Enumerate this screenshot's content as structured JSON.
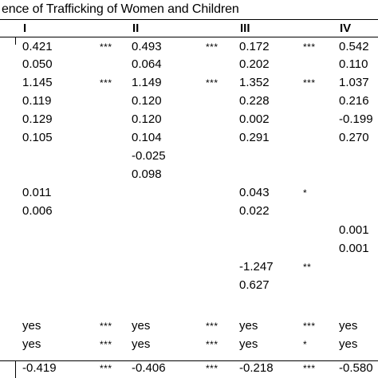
{
  "title": "ence of Trafficking of Women and Children",
  "columns": [
    "I",
    "II",
    "III",
    "IV"
  ],
  "rows": [
    [
      "0.421",
      "***",
      "0.493",
      "***",
      "0.172",
      "***",
      "0.542"
    ],
    [
      "0.050",
      "",
      "0.064",
      "",
      "0.202",
      "",
      "0.110"
    ],
    [
      "1.145",
      "***",
      "1.149",
      "***",
      "1.352",
      "***",
      "1.037"
    ],
    [
      "0.119",
      "",
      "0.120",
      "",
      "0.228",
      "",
      "0.216"
    ],
    [
      "0.129",
      "",
      "0.120",
      "",
      "0.002",
      "",
      "-0.199"
    ],
    [
      "0.105",
      "",
      "0.104",
      "",
      "0.291",
      "",
      "0.270"
    ],
    [
      "",
      "",
      "-0.025",
      "",
      "",
      "",
      ""
    ],
    [
      "",
      "",
      "0.098",
      "",
      "",
      "",
      ""
    ],
    [
      "0.011",
      "",
      "",
      "",
      "0.043",
      "*",
      ""
    ],
    [
      "0.006",
      "",
      "",
      "",
      "0.022",
      "",
      ""
    ],
    [
      "",
      "",
      "",
      "",
      "",
      "",
      "0.001"
    ],
    [
      "",
      "",
      "",
      "",
      "",
      "",
      "0.001"
    ],
    [
      "",
      "",
      "",
      "",
      "-1.247",
      "**",
      ""
    ],
    [
      "",
      "",
      "",
      "",
      "0.627",
      "",
      ""
    ],
    [
      "yes",
      "***",
      "yes",
      "***",
      "yes",
      "***",
      "yes"
    ],
    [
      "yes",
      "***",
      "yes",
      "***",
      "yes",
      "*",
      "yes"
    ],
    [
      "-0.419",
      "***",
      "-0.406",
      "***",
      "-0.218",
      "***",
      "-0.580"
    ]
  ]
}
